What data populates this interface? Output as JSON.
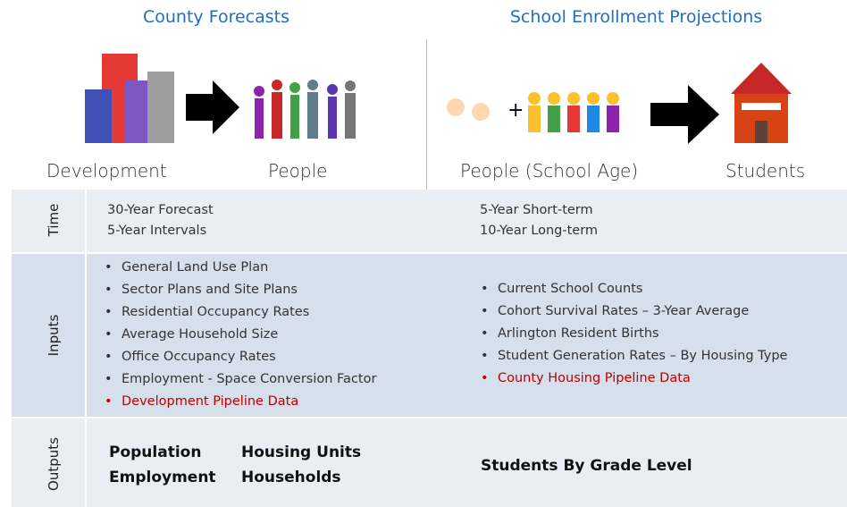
{
  "columns": [
    {
      "title": "County Forecasts",
      "from": "Development",
      "to": "People"
    },
    {
      "title": "School Enrollment Projections",
      "from": "People (School Age)",
      "to": "Students"
    }
  ],
  "rows": [
    {
      "label": "Time",
      "left": [
        "30-Year Forecast",
        "5-Year Intervals"
      ],
      "right": [
        "5-Year Short-term",
        "10-Year Long-term"
      ]
    },
    {
      "label": "Inputs",
      "left": [
        "General Land Use Plan",
        "Sector Plans and Site Plans",
        "Residential Occupancy Rates",
        "Average Household Size",
        "Office Occupancy Rates",
        "Employment - Space Conversion Factor"
      ],
      "left_highlight": "Development Pipeline Data",
      "right": [
        "Current School Counts",
        "Cohort Survival Rates – 3-Year Average",
        "Arlington Resident Births",
        "Student Generation Rates – By Housing Type"
      ],
      "right_highlight": "County Housing Pipeline Data"
    },
    {
      "label": "Outputs",
      "left": [
        [
          "Population",
          "Housing Units"
        ],
        [
          "Employment",
          "Households"
        ]
      ],
      "right": [
        "Students By Grade Level"
      ]
    }
  ]
}
